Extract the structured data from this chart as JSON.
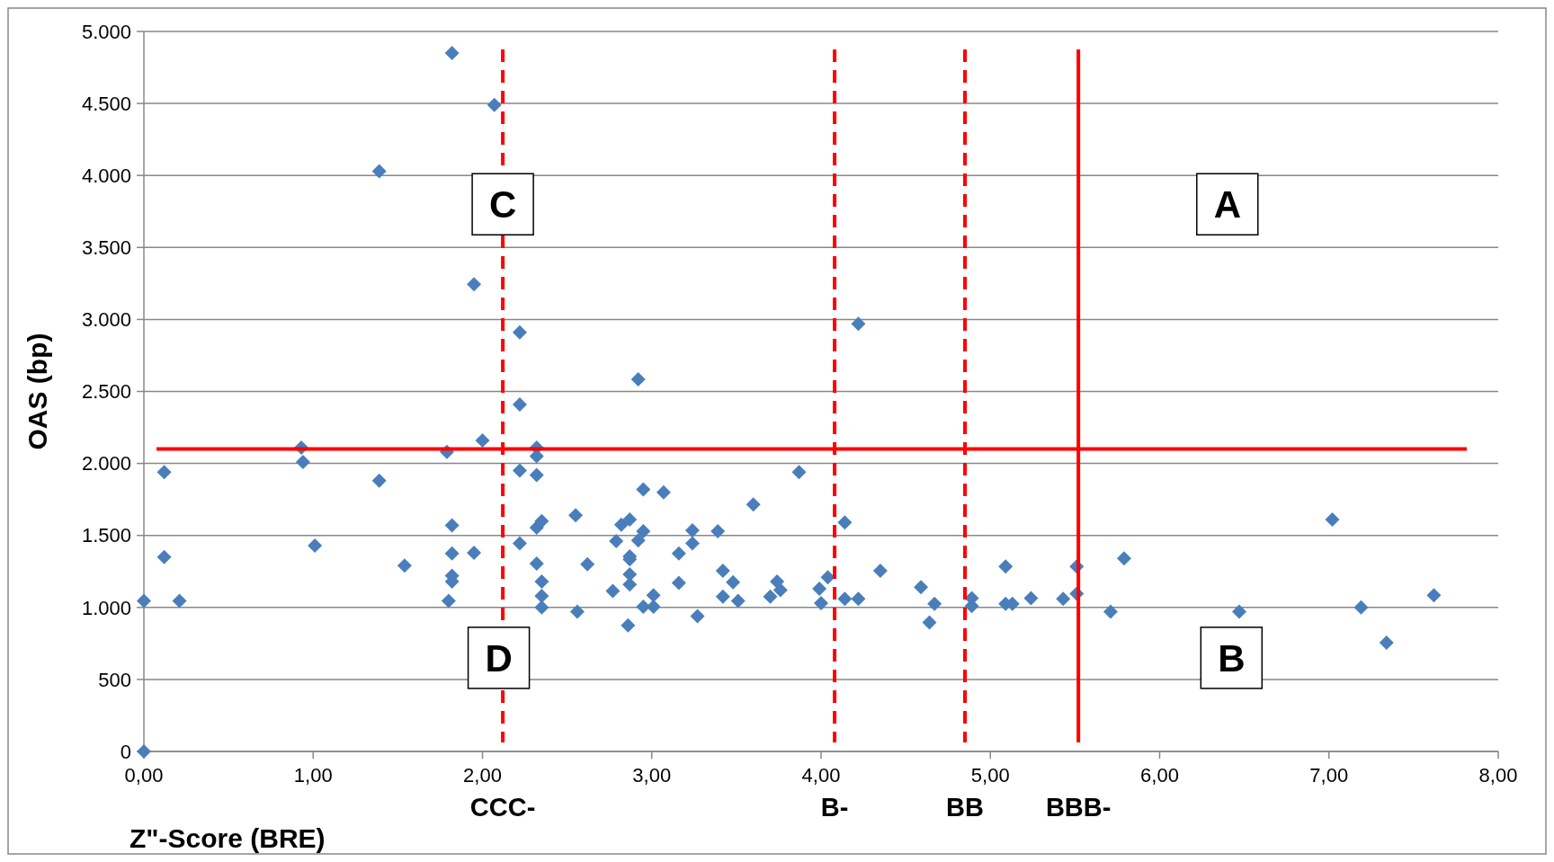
{
  "chart_data": {
    "type": "scatter",
    "xlabel": "Z\"-Score (BRE)",
    "ylabel": "OAS (bp)",
    "xlim": [
      0,
      8
    ],
    "xticks": [
      {
        "value": 0,
        "label": "0,00"
      },
      {
        "value": 1,
        "label": "1,00"
      },
      {
        "value": 2,
        "label": "2,00"
      },
      {
        "value": 3,
        "label": "3,00"
      },
      {
        "value": 4,
        "label": "4,00"
      },
      {
        "value": 5,
        "label": "5,00"
      },
      {
        "value": 6,
        "label": "6,00"
      },
      {
        "value": 7,
        "label": "7,00"
      },
      {
        "value": 8,
        "label": "8,00"
      }
    ],
    "ylim": [
      0,
      5000
    ],
    "yticks": [
      0,
      500,
      {
        "value": 1000,
        "label": "1.000"
      },
      {
        "value": 1500,
        "label": "1.500"
      },
      {
        "value": 2000,
        "label": "2.000"
      },
      {
        "value": 2500,
        "label": "2.500"
      },
      {
        "value": 3000,
        "label": "3.000"
      },
      {
        "value": 3500,
        "label": "3.500"
      },
      {
        "value": 4000,
        "label": "4.000"
      },
      {
        "value": 4500,
        "label": "4.500"
      },
      {
        "value": 5000,
        "label": "5.000"
      }
    ],
    "grid": "y",
    "marker": "diamond",
    "series": [
      {
        "color": "#4a7ebb",
        "x": [
          0,
          0,
          0.12,
          0.12,
          0.21,
          0.93,
          0.94,
          1.01,
          1.39,
          1.39,
          1.54,
          1.79,
          1.82,
          1.82,
          1.82,
          1.82,
          1.82,
          1.8,
          1.95,
          1.95,
          2.0,
          2.07,
          2.22,
          2.22,
          2.22,
          2.22,
          2.32,
          2.32,
          2.32,
          2.32,
          2.35,
          2.32,
          2.35,
          2.35,
          2.35,
          2.55,
          2.56,
          2.62,
          2.77,
          2.79,
          2.82,
          2.87,
          2.87,
          2.87,
          2.87,
          2.87,
          2.86,
          2.92,
          2.92,
          2.95,
          2.95,
          2.95,
          3.01,
          3.01,
          3.07,
          3.16,
          3.16,
          3.24,
          3.24,
          3.27,
          3.39,
          3.42,
          3.42,
          3.48,
          3.51,
          3.6,
          3.7,
          3.74,
          3.76,
          3.87,
          3.99,
          4.0,
          4.04,
          4.14,
          4.14,
          4.22,
          4.22,
          4.35,
          4.59,
          4.64,
          4.67,
          4.89,
          4.89,
          5.09,
          5.09,
          5.13,
          5.24,
          5.43,
          5.51,
          5.51,
          5.71,
          5.79,
          6.47,
          7.02,
          7.19,
          7.34,
          7.62
        ],
        "values": [
          0,
          1045,
          1940,
          1350,
          1045,
          2110,
          2010,
          1430,
          4030,
          1880,
          1290,
          2080,
          4850,
          1570,
          1375,
          1220,
          1180,
          1045,
          3245,
          1380,
          2160,
          4490,
          2910,
          2410,
          1950,
          1445,
          2110,
          2050,
          1920,
          1555,
          1600,
          1305,
          1180,
          1080,
          1000,
          1640,
          970,
          1300,
          1115,
          1460,
          1575,
          1610,
          1355,
          1335,
          1230,
          1160,
          875,
          2585,
          1465,
          1530,
          1820,
          1005,
          1085,
          1005,
          1800,
          1375,
          1170,
          1535,
          1445,
          940,
          1530,
          1255,
          1075,
          1175,
          1045,
          1715,
          1075,
          1180,
          1120,
          1940,
          1130,
          1030,
          1210,
          1590,
          1060,
          2970,
          1060,
          1255,
          1140,
          895,
          1025,
          1065,
          1010,
          1285,
          1025,
          1025,
          1065,
          1060,
          1285,
          1095,
          970,
          1340,
          970,
          1610,
          1000,
          755,
          1085
        ]
      }
    ],
    "ref_lines": [
      {
        "axis": "y",
        "value": 2100,
        "color": "#ff0000",
        "line_style": "solid"
      },
      {
        "axis": "x",
        "value": 2.12,
        "label": "CCC-",
        "color": "#ff0000",
        "line_style": "dashed"
      },
      {
        "axis": "x",
        "value": 4.08,
        "label": "B-",
        "color": "#ff0000",
        "line_style": "dashed"
      },
      {
        "axis": "x",
        "value": 4.85,
        "label": "BB",
        "color": "#ff0000",
        "line_style": "dashed"
      },
      {
        "axis": "x",
        "value": 5.52,
        "label": "BBB-",
        "color": "#ff0000",
        "line_style": "solid"
      }
    ],
    "annotations": [
      "C",
      "A",
      "D",
      "B"
    ]
  }
}
